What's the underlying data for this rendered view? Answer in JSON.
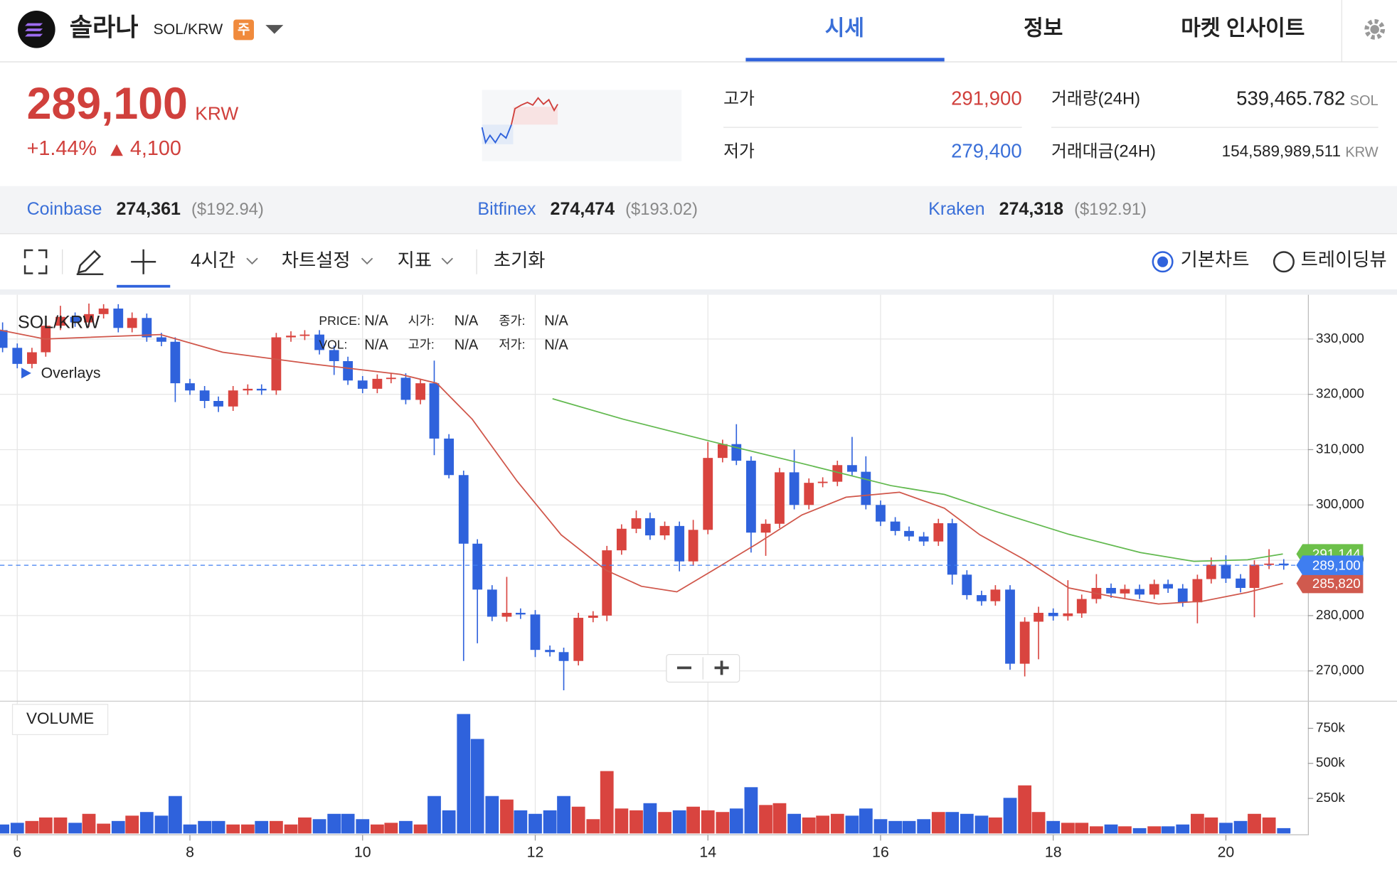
{
  "header": {
    "name": "솔라나",
    "pair": "SOL/KRW",
    "badge": "주",
    "tabs": [
      "시세",
      "정보",
      "마켓 인사이트"
    ]
  },
  "ticker": {
    "price": "289,100",
    "currency": "KRW",
    "change_rate": "+1.44%",
    "change": "4,100",
    "high_label": "고가",
    "high": "291,900",
    "low_label": "저가",
    "low": "279,400",
    "volume_label": "거래량(24H)",
    "volume": "539,465.782",
    "volume_unit": "SOL",
    "amount_label": "거래대금(24H)",
    "amount": "154,589,989,511",
    "amount_unit": "KRW"
  },
  "exchanges": [
    {
      "name": "Coinbase",
      "price": "274,361",
      "usd": "($192.94)"
    },
    {
      "name": "Bitfinex",
      "price": "274,474",
      "usd": "($193.02)"
    },
    {
      "name": "Kraken",
      "price": "274,318",
      "usd": "($192.91)"
    }
  ],
  "toolbar": {
    "interval": "4시간",
    "settings": "차트설정",
    "indicators": "지표",
    "reset": "초기화",
    "views": [
      "기본차트",
      "트레이딩뷰"
    ]
  },
  "chart_data": {
    "type": "candlestick",
    "title": "SOL/KRW",
    "overlays_label": "Overlays",
    "info": [
      [
        "PRICE:",
        "N/A",
        "시가:",
        "N/A",
        "종가:",
        "N/A"
      ],
      [
        "VOL:",
        "N/A",
        "고가:",
        "N/A",
        "저가:",
        "N/A"
      ]
    ],
    "volume_title": "VOLUME",
    "up_color": "#d9443f",
    "down_color": "#2f62dc",
    "grid": true,
    "xlim": [
      5.8,
      20.95
    ],
    "xticks": [
      6,
      8,
      10,
      12,
      14,
      16,
      18,
      20
    ],
    "ylim": [
      264600,
      338000
    ],
    "yticks": [
      {
        "value": 270000,
        "label": "270,000"
      },
      {
        "value": 280000,
        "label": "280,000"
      },
      {
        "value": 290000,
        "label": "290,000"
      },
      {
        "value": 300000,
        "label": "300,000"
      },
      {
        "value": 310000,
        "label": "310,000"
      },
      {
        "value": 320000,
        "label": "320,000"
      },
      {
        "value": 330000,
        "label": "330,000"
      }
    ],
    "volume_ylim": [
      0,
      940000
    ],
    "volume_yticks": [
      {
        "value": 250000,
        "label": "250k"
      },
      {
        "value": 500000,
        "label": "500k"
      },
      {
        "value": 750000,
        "label": "750k"
      }
    ],
    "x": [
      5.83,
      6,
      6.17,
      6.33,
      6.5,
      6.67,
      6.83,
      7,
      7.17,
      7.33,
      7.5,
      7.67,
      7.83,
      8,
      8.17,
      8.33,
      8.5,
      8.67,
      8.83,
      9,
      9.17,
      9.33,
      9.5,
      9.67,
      9.83,
      10,
      10.17,
      10.33,
      10.5,
      10.67,
      10.83,
      11,
      11.17,
      11.33,
      11.5,
      11.67,
      11.83,
      12,
      12.17,
      12.33,
      12.5,
      12.67,
      12.83,
      13,
      13.17,
      13.33,
      13.5,
      13.67,
      13.83,
      14,
      14.17,
      14.33,
      14.5,
      14.67,
      14.83,
      15,
      15.17,
      15.33,
      15.5,
      15.67,
      15.83,
      16,
      16.17,
      16.33,
      16.5,
      16.67,
      16.83,
      17,
      17.17,
      17.33,
      17.5,
      17.67,
      17.83,
      18,
      18.17,
      18.33,
      18.5,
      18.67,
      18.83,
      19,
      19.17,
      19.33,
      19.5,
      19.67,
      19.83,
      20,
      20.17,
      20.33,
      20.5,
      20.67
    ],
    "open": [
      331600,
      328400,
      325500,
      327600,
      332400,
      334000,
      333000,
      334500,
      335500,
      332000,
      333800,
      330300,
      329500,
      322000,
      320700,
      318800,
      317800,
      320700,
      321000,
      320700,
      330300,
      330600,
      330800,
      328000,
      326000,
      322500,
      321000,
      322800,
      323000,
      319000,
      322000,
      312000,
      305400,
      293000,
      284700,
      279800,
      280500,
      280200,
      273800,
      273400,
      271800,
      279600,
      280000,
      291800,
      295700,
      297600,
      294500,
      296200,
      289800,
      295500,
      308500,
      311000,
      308000,
      295000,
      296600,
      305900,
      300000,
      304000,
      304200,
      307200,
      306000,
      300000,
      297000,
      295300,
      294300,
      293400,
      296700,
      287400,
      283700,
      282600,
      284700,
      271300,
      278900,
      280500,
      279900,
      280400,
      283000,
      285000,
      284000,
      284800,
      283800,
      285700,
      284900,
      282400,
      286600,
      289200,
      286700,
      285000,
      289200,
      289400
    ],
    "high": [
      333000,
      329200,
      328400,
      333200,
      336000,
      334800,
      336400,
      336300,
      336300,
      334800,
      334600,
      331100,
      330300,
      322800,
      321500,
      319600,
      321500,
      321800,
      321800,
      331100,
      331400,
      331600,
      331600,
      328800,
      326800,
      323300,
      323600,
      323800,
      323800,
      322800,
      326100,
      312800,
      306200,
      293800,
      285500,
      287000,
      281300,
      281000,
      274600,
      274200,
      280500,
      280800,
      292600,
      296500,
      299000,
      298600,
      297000,
      297000,
      297300,
      311400,
      311800,
      314600,
      308800,
      297400,
      306700,
      310000,
      304800,
      305000,
      308000,
      312300,
      308800,
      300800,
      297800,
      296100,
      295100,
      297500,
      297500,
      288200,
      284500,
      285500,
      285500,
      279700,
      281600,
      281300,
      286400,
      283800,
      287500,
      285800,
      285600,
      285600,
      286500,
      286500,
      285700,
      287400,
      290500,
      290900,
      287500,
      290000,
      292000,
      290200
    ],
    "low": [
      327600,
      324700,
      324700,
      326800,
      331600,
      332200,
      332200,
      333700,
      331200,
      331200,
      329500,
      328700,
      318600,
      319900,
      317500,
      316800,
      317000,
      319900,
      319900,
      319900,
      329500,
      329800,
      327200,
      323500,
      321700,
      320200,
      320200,
      322000,
      318200,
      318200,
      309000,
      304800,
      271800,
      275000,
      279000,
      278900,
      279400,
      272500,
      272600,
      266500,
      271000,
      278800,
      279000,
      291000,
      294900,
      293700,
      293700,
      288000,
      289000,
      294700,
      307700,
      307200,
      291400,
      290800,
      295800,
      299200,
      299200,
      303200,
      303400,
      305200,
      299200,
      296200,
      294500,
      293500,
      292600,
      292600,
      285600,
      282900,
      281800,
      281800,
      270200,
      269000,
      272100,
      279100,
      279100,
      279600,
      282200,
      283200,
      283200,
      283000,
      283000,
      284100,
      281600,
      278600,
      285800,
      285900,
      284200,
      279700,
      288400,
      288300
    ],
    "close": [
      328400,
      325500,
      327600,
      332400,
      334000,
      333000,
      334500,
      335500,
      332000,
      333800,
      330300,
      329500,
      322000,
      320700,
      318800,
      317800,
      320700,
      321000,
      320700,
      330300,
      330600,
      330800,
      328000,
      326000,
      322500,
      321000,
      322800,
      323000,
      319000,
      322000,
      312000,
      305400,
      293000,
      284700,
      279800,
      280500,
      280200,
      273800,
      273400,
      271800,
      279600,
      280000,
      291800,
      295700,
      297600,
      294500,
      296200,
      289800,
      295500,
      308500,
      311000,
      308000,
      295000,
      296600,
      305900,
      300000,
      304000,
      304200,
      307200,
      306000,
      300000,
      297000,
      295300,
      294300,
      293400,
      296700,
      287400,
      283700,
      282600,
      284700,
      271300,
      278900,
      280500,
      279900,
      280400,
      283000,
      285000,
      284000,
      284800,
      283800,
      285700,
      284900,
      282400,
      286600,
      289200,
      286700,
      285000,
      289200,
      289400,
      289100
    ],
    "volume": [
      64000,
      76000,
      89000,
      114000,
      114000,
      76000,
      140000,
      70000,
      89000,
      127000,
      153000,
      127000,
      267000,
      64000,
      89000,
      89000,
      64000,
      64000,
      89000,
      89000,
      64000,
      114000,
      102000,
      140000,
      140000,
      102000,
      64000,
      76000,
      89000,
      64000,
      267000,
      165000,
      852000,
      674000,
      267000,
      242000,
      165000,
      140000,
      165000,
      267000,
      191000,
      102000,
      445000,
      178000,
      165000,
      216000,
      153000,
      165000,
      191000,
      165000,
      153000,
      178000,
      330000,
      203000,
      216000,
      140000,
      114000,
      127000,
      140000,
      127000,
      178000,
      102000,
      89000,
      89000,
      102000,
      153000,
      153000,
      140000,
      127000,
      114000,
      254000,
      343000,
      153000,
      89000,
      76000,
      76000,
      51000,
      64000,
      51000,
      38000,
      51000,
      51000,
      64000,
      140000,
      114000,
      76000,
      89000,
      140000,
      114000,
      38000
    ],
    "lines": [
      {
        "color": "#d0564a",
        "x": [
          5.8,
          6.32,
          6.83,
          7.66,
          8.38,
          9.41,
          10.44,
          10.86,
          11.27,
          11.79,
          12.3,
          12.82,
          13.23,
          13.64,
          14.06,
          14.57,
          15.09,
          15.6,
          16.22,
          16.74,
          17.15,
          17.67,
          18.18,
          18.7,
          19.22,
          19.73,
          20.25,
          20.66
        ],
        "values": [
          331600,
          330000,
          330300,
          330800,
          327600,
          325500,
          323600,
          322000,
          315500,
          304300,
          294600,
          288200,
          285300,
          284300,
          288200,
          293000,
          298200,
          301400,
          302300,
          299400,
          294600,
          290100,
          285000,
          283400,
          282100,
          282600,
          284200,
          285820
        ]
      },
      {
        "color": "#62b94f",
        "x": [
          12.2,
          13.02,
          14.06,
          15.09,
          16.12,
          16.74,
          17.36,
          18.18,
          19.01,
          19.63,
          20.25,
          20.66
        ],
        "values": [
          319200,
          315500,
          311400,
          307500,
          303500,
          301900,
          298700,
          294700,
          291400,
          289800,
          290100,
          291144
        ]
      }
    ],
    "price_tags": [
      {
        "value": 291144,
        "label": "291,144",
        "color": "#6cc04a"
      },
      {
        "value": 285820,
        "label": "285,820",
        "color": "#d05a4e"
      },
      {
        "value": 289100,
        "label": "289,100",
        "color": "#3f7ef0"
      }
    ]
  }
}
